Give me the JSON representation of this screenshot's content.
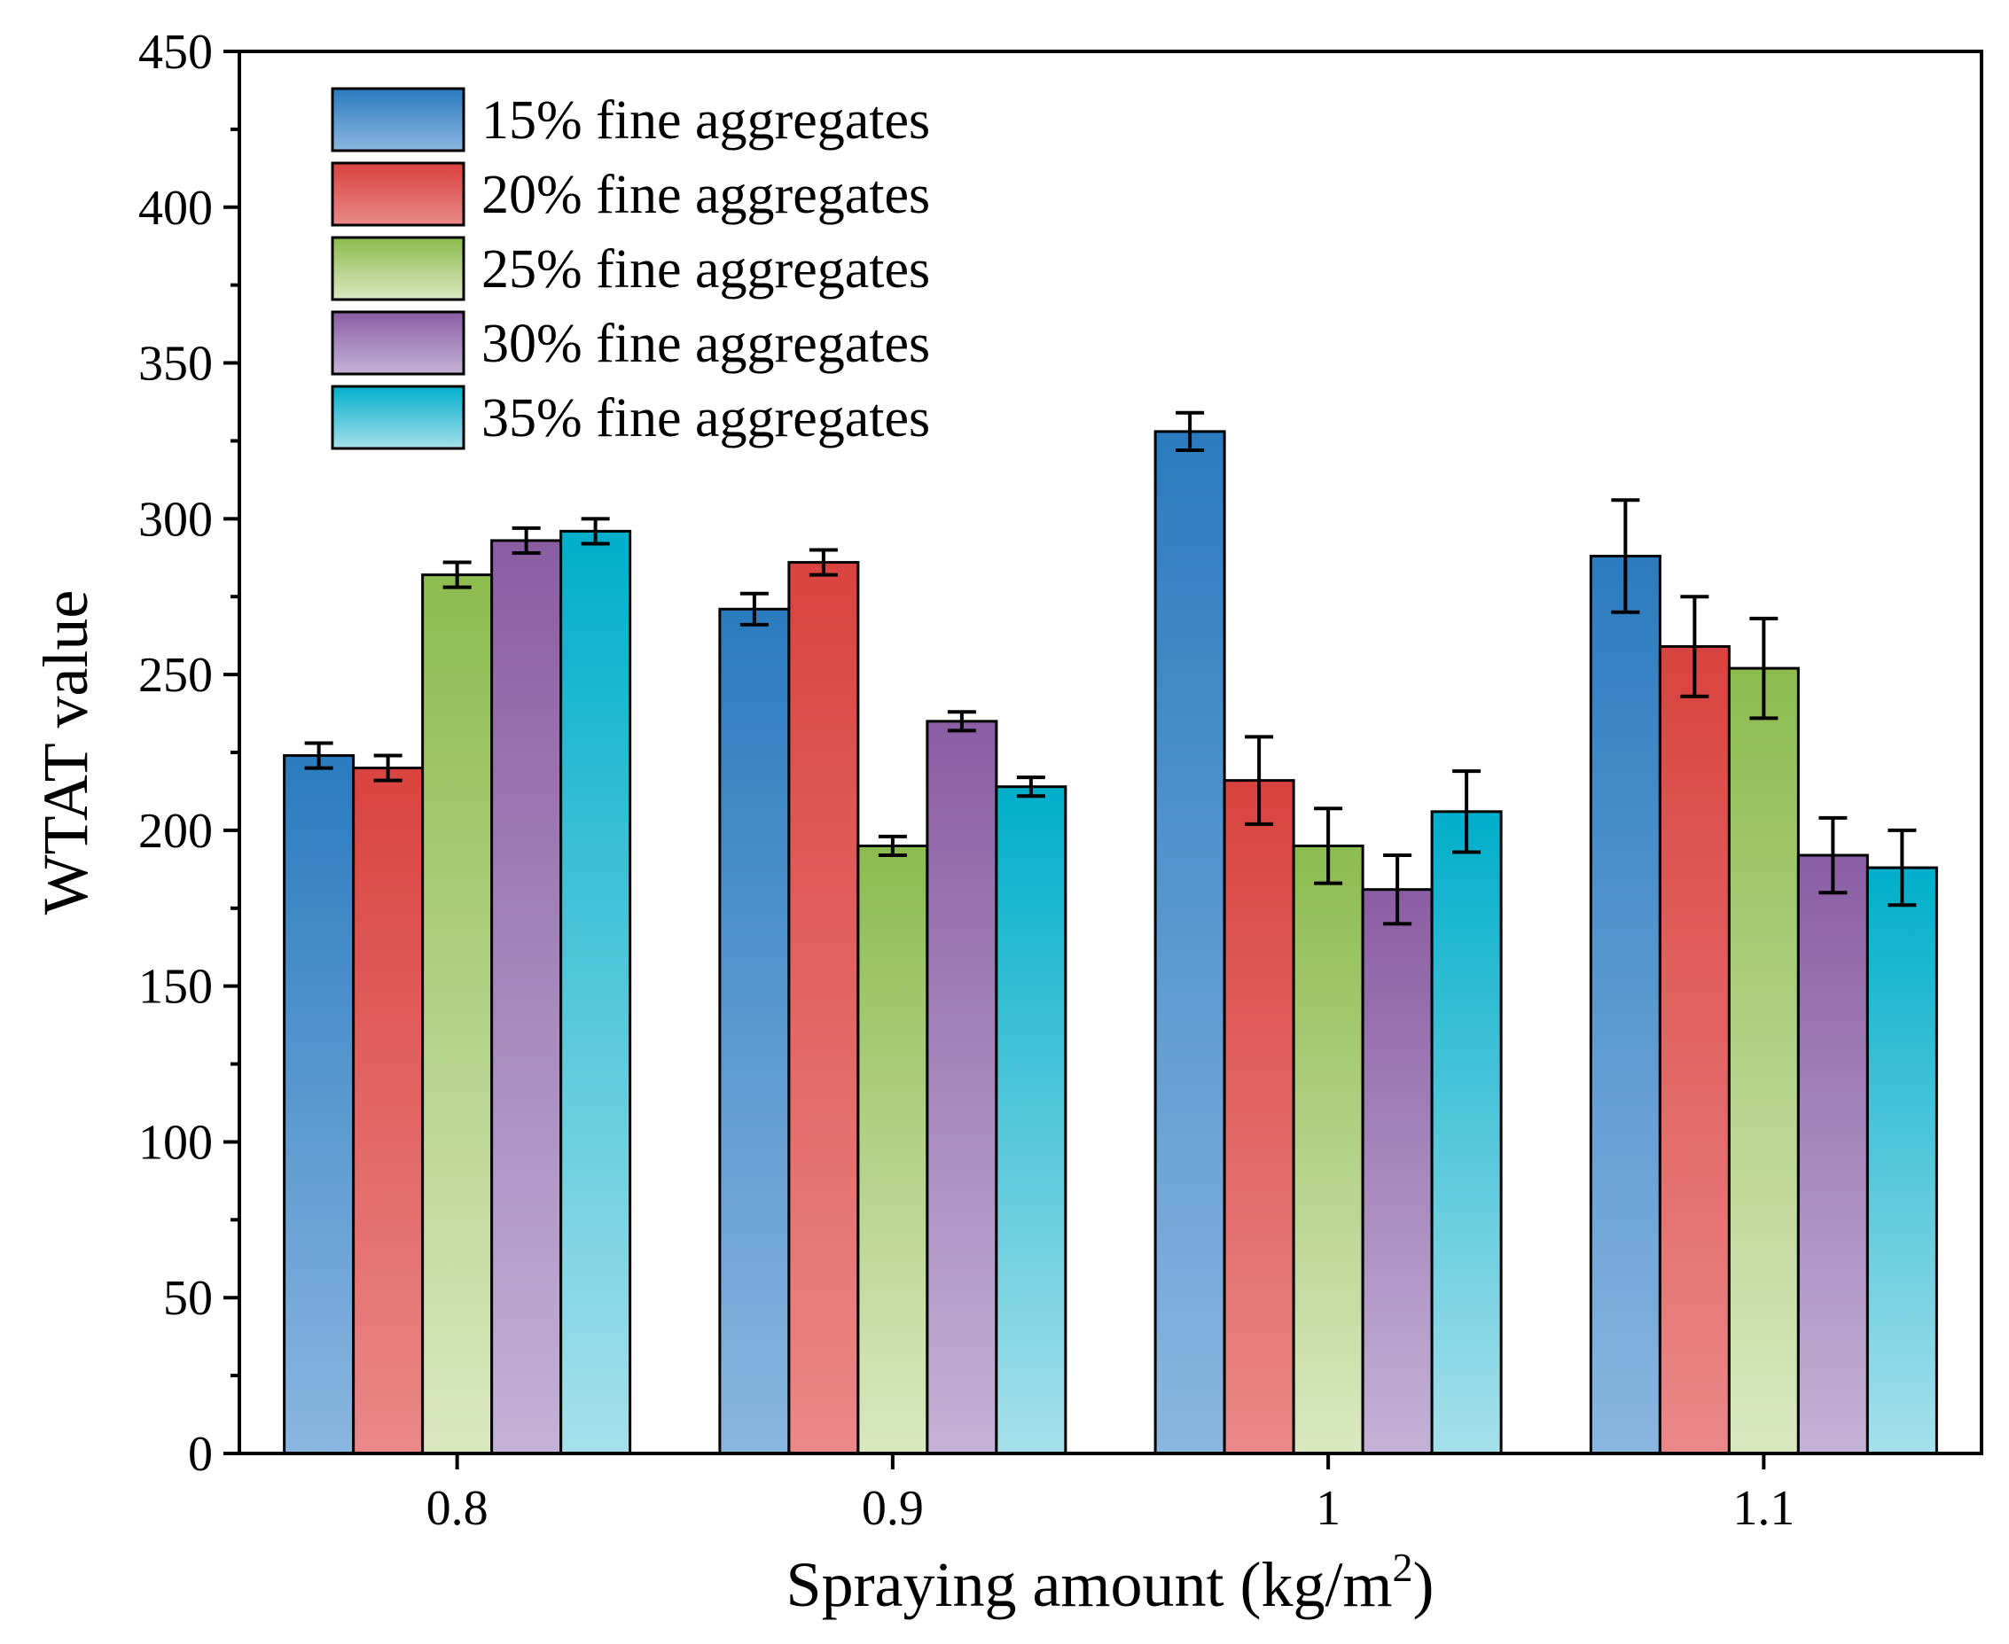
{
  "chart_data": {
    "type": "bar",
    "title": "",
    "xlabel": "Spraying amount (kg/m",
    "xlabel_sup": "2",
    "xlabel_close": ")",
    "ylabel": "WTAT value",
    "ylim": [
      0,
      450
    ],
    "yticks": [
      0,
      50,
      100,
      150,
      200,
      250,
      300,
      350,
      400,
      450
    ],
    "categories": [
      "0.8",
      "0.9",
      "1",
      "1.1"
    ],
    "legend_position": "top-left",
    "series": [
      {
        "name": "15% fine aggregates",
        "values": [
          224,
          271,
          328,
          288
        ],
        "errors": [
          4,
          5,
          6,
          18
        ],
        "colors": [
          "#2a7bbf",
          "#8ab6e0"
        ]
      },
      {
        "name": "20% fine aggregates",
        "values": [
          220,
          286,
          216,
          259
        ],
        "errors": [
          4,
          4,
          14,
          16
        ],
        "colors": [
          "#d9433f",
          "#ea8888"
        ]
      },
      {
        "name": "25% fine aggregates",
        "values": [
          282,
          195,
          195,
          252
        ],
        "errors": [
          4,
          3,
          12,
          16
        ],
        "colors": [
          "#8cbb4e",
          "#dae8c0"
        ]
      },
      {
        "name": "30% fine aggregates",
        "values": [
          293,
          235,
          181,
          192
        ],
        "errors": [
          4,
          3,
          11,
          12
        ],
        "colors": [
          "#8a5da3",
          "#c4b2d6"
        ]
      },
      {
        "name": "35% fine aggregates",
        "values": [
          296,
          214,
          206,
          188
        ],
        "errors": [
          4,
          3,
          13,
          12
        ],
        "colors": [
          "#00aecb",
          "#a6e0ea"
        ]
      }
    ]
  }
}
